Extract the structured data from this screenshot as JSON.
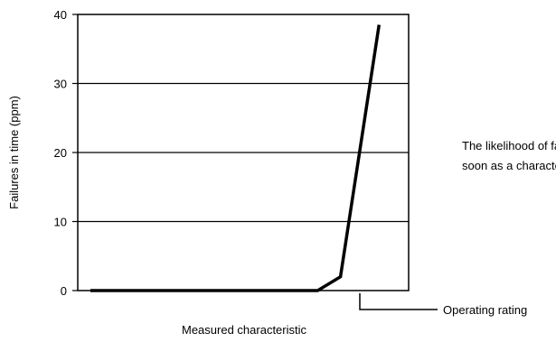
{
  "chart_data": {
    "type": "line",
    "xlabel": "Measured characteristic",
    "ylabel": "Failures in time (ppm)",
    "ylim": [
      0,
      40
    ],
    "yticks": [
      "0",
      "10",
      "20",
      "30",
      "40"
    ],
    "grid": "horizontal",
    "series": [
      {
        "x": [
          0,
          5,
          100,
          110,
          127
        ],
        "y": [
          0,
          0,
          0,
          2,
          38.5
        ]
      }
    ],
    "annotations": {
      "operating_rating": "Operating rating",
      "note_line1": "The likelihood of failure increases as",
      "note_line2": "soon as a characteristic exceeds ratings"
    }
  }
}
